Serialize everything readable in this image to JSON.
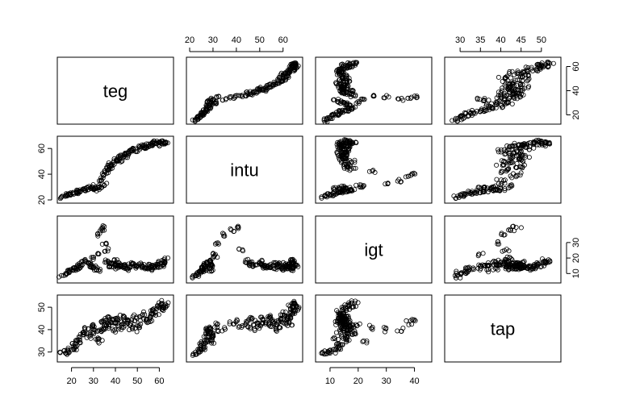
{
  "chart_data": {
    "type": "scatter",
    "kind": "scatterplot-matrix",
    "marker": "open-circle",
    "variables": [
      "teg",
      "intu",
      "igt",
      "tap"
    ],
    "ranges": {
      "teg": [
        15,
        65
      ],
      "intu": [
        20,
        67
      ],
      "igt": [
        6,
        45
      ],
      "tap": [
        27,
        54
      ]
    },
    "axis_ticks": {
      "top": {
        "intu": [
          20,
          30,
          40,
          50,
          60
        ],
        "tap": [
          30,
          35,
          40,
          45,
          50
        ]
      },
      "bottom": {
        "teg": [
          20,
          30,
          40,
          50,
          60
        ],
        "igt": [
          10,
          20,
          30,
          40
        ]
      },
      "left": {
        "intu": [
          20,
          40,
          60
        ],
        "tap": [
          30,
          40,
          50
        ]
      },
      "right": {
        "teg": [
          20,
          40,
          60
        ],
        "igt": [
          10,
          20,
          30
        ]
      }
    },
    "points": {
      "teg": [
        15,
        17,
        18,
        19,
        20,
        21,
        22,
        23,
        23,
        24,
        25,
        26,
        27,
        28,
        29,
        30,
        30,
        31,
        32,
        33,
        33,
        34,
        35,
        35,
        36,
        36,
        37,
        38,
        38,
        39,
        40,
        40,
        41,
        42,
        42,
        43,
        44,
        45,
        45,
        46,
        47,
        48,
        49,
        50,
        51,
        52,
        53,
        54,
        55,
        56,
        57,
        57,
        58,
        59,
        60,
        60,
        61,
        62,
        62,
        63
      ],
      "intu": [
        22,
        23,
        24,
        24,
        25,
        25,
        26,
        26,
        27,
        27,
        28,
        28,
        28,
        29,
        30,
        29,
        31,
        28,
        29,
        30,
        35,
        38,
        40,
        32,
        42,
        44,
        46,
        45,
        48,
        47,
        50,
        52,
        51,
        50,
        53,
        54,
        55,
        56,
        54,
        57,
        58,
        59,
        60,
        58,
        61,
        62,
        61,
        60,
        63,
        62,
        64,
        63,
        65,
        64,
        63,
        65,
        66,
        64,
        65,
        64
      ],
      "igt": [
        8,
        9,
        10,
        11,
        12,
        13,
        13,
        14,
        15,
        16,
        17,
        18,
        17,
        16,
        15,
        14,
        20,
        13,
        12,
        22,
        35,
        38,
        40,
        30,
        25,
        18,
        17,
        16,
        15,
        16,
        18,
        14,
        15,
        16,
        15,
        14,
        15,
        16,
        14,
        13,
        15,
        16,
        14,
        15,
        16,
        15,
        14,
        13,
        14,
        15,
        13,
        14,
        15,
        14,
        16,
        17,
        15,
        18,
        17,
        19
      ],
      "tap": [
        29,
        30,
        31,
        30,
        32,
        33,
        32,
        34,
        35,
        36,
        38,
        39,
        40,
        37,
        38,
        41,
        42,
        39,
        36,
        35,
        40,
        43,
        44,
        40,
        41,
        42,
        45,
        44,
        43,
        40,
        42,
        44,
        45,
        41,
        43,
        46,
        42,
        44,
        45,
        43,
        41,
        44,
        46,
        40,
        42,
        45,
        47,
        44,
        43,
        45,
        48,
        46,
        49,
        47,
        50,
        51,
        49,
        52,
        50,
        51
      ]
    }
  }
}
